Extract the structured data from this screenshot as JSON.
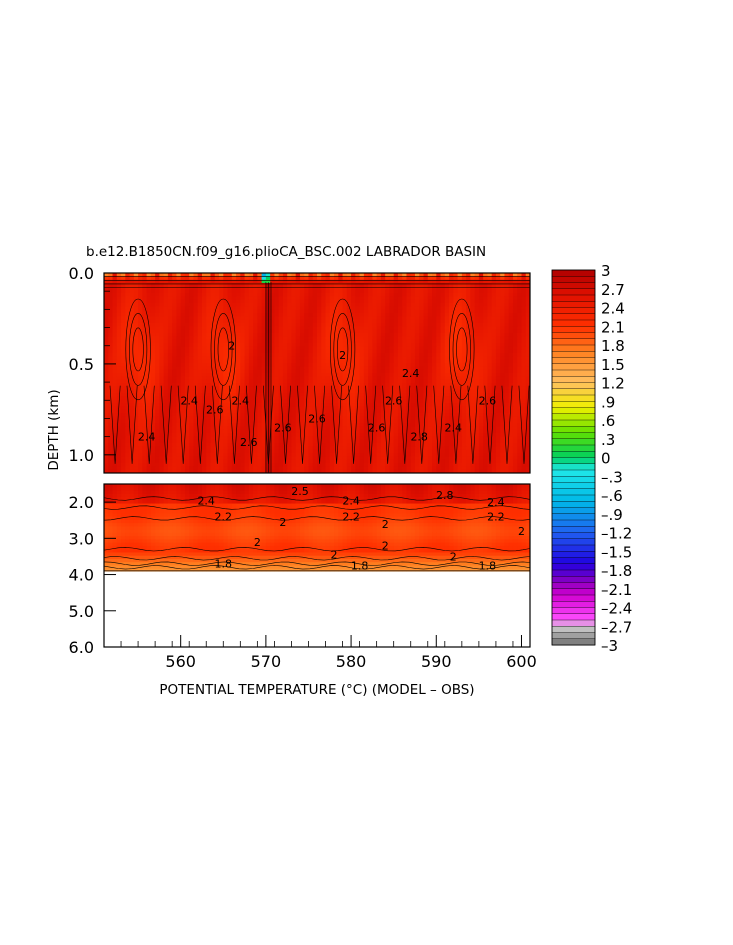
{
  "chart_data": {
    "type": "heatmap",
    "title": "b.e12.B1850CN.f09_g16.plioCA_BSC.002 LABRADOR BASIN",
    "xlabel": "POTENTIAL TEMPERATURE (°C) (MODEL – OBS)",
    "ylabel": "DEPTH (km)",
    "xlim": [
      551,
      601
    ],
    "x_ticks": [
      560,
      570,
      580,
      590,
      600
    ],
    "x_tick_labels": [
      "560",
      "570",
      "580",
      "590",
      "600"
    ],
    "panels": [
      {
        "name": "upper",
        "ylim": [
          0.0,
          1.1
        ],
        "y_ticks": [
          0.0,
          0.5,
          1.0
        ],
        "y_tick_labels": [
          "0.0",
          "0.5",
          "1.0"
        ]
      },
      {
        "name": "lower",
        "ylim": [
          1.5,
          6.0
        ],
        "y_ticks": [
          2.0,
          3.0,
          4.0,
          5.0,
          6.0
        ],
        "y_tick_labels": [
          "2.0",
          "3.0",
          "4.0",
          "5.0",
          "6.0"
        ]
      }
    ],
    "bottom_depth_km": 3.9,
    "colorbar": {
      "range": [
        -3,
        3
      ],
      "step": 0.1,
      "labels": [
        "3",
        "2.7",
        "2.4",
        "2.1",
        "1.8",
        "1.5",
        "1.2",
        ".9",
        ".6",
        ".3",
        "0",
        "–.3",
        "–.6",
        "–.9",
        "–1.2",
        "–1.5",
        "–1.8",
        "–2.1",
        "–2.4",
        "–2.7",
        "–3"
      ],
      "stops": [
        {
          "v": -3.0,
          "c": "#707070"
        },
        {
          "v": -2.7,
          "c": "#d0d0d0"
        },
        {
          "v": -2.6,
          "c": "#ff50ff"
        },
        {
          "v": -2.2,
          "c": "#d000d0"
        },
        {
          "v": -2.0,
          "c": "#9000c0"
        },
        {
          "v": -1.7,
          "c": "#2000e0"
        },
        {
          "v": -1.2,
          "c": "#2060f0"
        },
        {
          "v": -0.7,
          "c": "#00b8e8"
        },
        {
          "v": -0.2,
          "c": "#20e8e8"
        },
        {
          "v": 0.0,
          "c": "#00d060"
        },
        {
          "v": 0.4,
          "c": "#60e000"
        },
        {
          "v": 0.8,
          "c": "#f0f000"
        },
        {
          "v": 1.2,
          "c": "#ffc060"
        },
        {
          "v": 1.7,
          "c": "#ff8020"
        },
        {
          "v": 2.1,
          "c": "#ff3000"
        },
        {
          "v": 2.6,
          "c": "#e01000"
        },
        {
          "v": 3.0,
          "c": "#b00000"
        }
      ]
    },
    "contour_labels": [
      {
        "x": 566,
        "y": 0.4,
        "text": "2"
      },
      {
        "x": 561,
        "y": 0.7,
        "text": "2.4"
      },
      {
        "x": 564,
        "y": 0.75,
        "text": "2.6"
      },
      {
        "x": 567,
        "y": 0.7,
        "text": "2.4"
      },
      {
        "x": 556,
        "y": 0.9,
        "text": "2.4"
      },
      {
        "x": 568,
        "y": 0.93,
        "text": "2.6"
      },
      {
        "x": 572,
        "y": 0.85,
        "text": "2.6"
      },
      {
        "x": 576,
        "y": 0.8,
        "text": "2.6"
      },
      {
        "x": 579,
        "y": 0.45,
        "text": "2"
      },
      {
        "x": 583,
        "y": 0.85,
        "text": "2.6"
      },
      {
        "x": 588,
        "y": 0.9,
        "text": "2.8"
      },
      {
        "x": 585,
        "y": 0.7,
        "text": "2.6"
      },
      {
        "x": 587,
        "y": 0.55,
        "text": "2.4"
      },
      {
        "x": 596,
        "y": 0.7,
        "text": "2.6"
      },
      {
        "x": 592,
        "y": 0.85,
        "text": "2.4"
      },
      {
        "x": 563,
        "y": 1.95,
        "text": "2.4"
      },
      {
        "x": 565,
        "y": 2.4,
        "text": "2.2"
      },
      {
        "x": 574,
        "y": 1.7,
        "text": "2.5"
      },
      {
        "x": 580,
        "y": 1.95,
        "text": "2.4"
      },
      {
        "x": 580,
        "y": 2.4,
        "text": "2.2"
      },
      {
        "x": 591,
        "y": 1.8,
        "text": "2.8"
      },
      {
        "x": 597,
        "y": 2.0,
        "text": "2.4"
      },
      {
        "x": 597,
        "y": 2.4,
        "text": "2.2"
      },
      {
        "x": 572,
        "y": 2.55,
        "text": "2"
      },
      {
        "x": 569,
        "y": 3.1,
        "text": "2"
      },
      {
        "x": 584,
        "y": 2.6,
        "text": "2"
      },
      {
        "x": 584,
        "y": 3.2,
        "text": "2"
      },
      {
        "x": 578,
        "y": 3.45,
        "text": "2"
      },
      {
        "x": 592,
        "y": 3.5,
        "text": "2"
      },
      {
        "x": 600,
        "y": 2.8,
        "text": "2"
      },
      {
        "x": 565,
        "y": 3.7,
        "text": "1.8"
      },
      {
        "x": 581,
        "y": 3.75,
        "text": "1.8"
      },
      {
        "x": 596,
        "y": 3.75,
        "text": "1.8"
      }
    ]
  }
}
